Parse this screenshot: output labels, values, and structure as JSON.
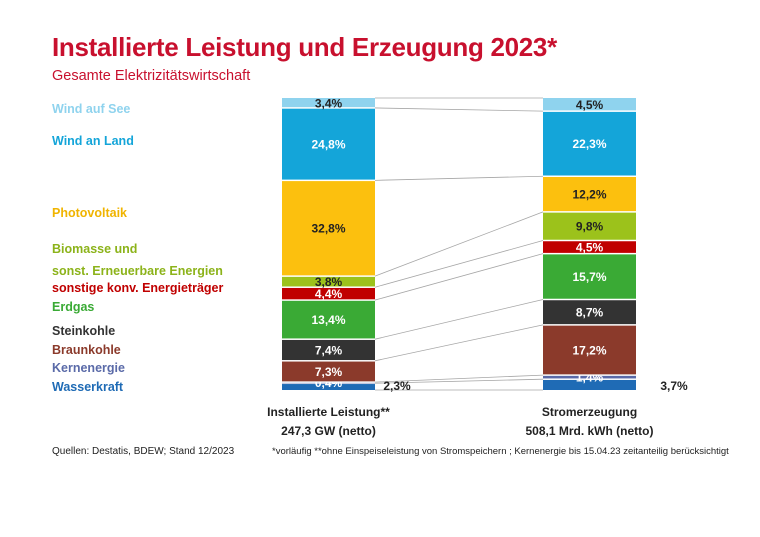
{
  "title": "Installierte Leistung und Erzeugung 2023*",
  "subtitle": "Gesamte Elektrizitätswirtschaft",
  "sources": "Quellen: Destatis, BDEW; Stand 12/2023",
  "footnote": "*vorläufig **ohne Einspeiseleistung von Stromspeichern ; Kernenergie bis 15.04.23 zeitanteilig berücksichtigt",
  "chart_data": {
    "type": "bar",
    "stacked": true,
    "normalized": "percent",
    "categories": [
      {
        "name": "Installierte Leistung**",
        "total": "247,3 GW (netto)"
      },
      {
        "name": "Stromerzeugung",
        "total": "508,1 Mrd. kWh (netto)"
      }
    ],
    "series": [
      {
        "name": "Wasserkraft",
        "color": "#1f6bb5",
        "values": [
          2.3,
          3.7
        ],
        "labels": [
          "2,3%",
          "3,7%"
        ],
        "label_outside": true
      },
      {
        "name": "Kernenergie",
        "color": "#5a6aa8",
        "values": [
          0.4,
          1.4
        ],
        "labels": [
          "0,4%",
          "1,4%"
        ]
      },
      {
        "name": "Braunkohle",
        "color": "#8b3a2b",
        "values": [
          7.3,
          17.2
        ],
        "labels": [
          "7,3%",
          "17,2%"
        ]
      },
      {
        "name": "Steinkohle",
        "color": "#333333",
        "values": [
          7.4,
          8.7
        ],
        "labels": [
          "7,4%",
          "8,7%"
        ]
      },
      {
        "name": "Erdgas",
        "color": "#3aaa35",
        "values": [
          13.4,
          15.7
        ],
        "labels": [
          "13,4%",
          "15,7%"
        ]
      },
      {
        "name": "sonstige konv. Energieträger",
        "color": "#c00000",
        "values": [
          4.4,
          4.5
        ],
        "labels": [
          "4,4%",
          "4,5%"
        ]
      },
      {
        "name": "Biomasse und sonst. Erneuerbare Energien",
        "color": "#9cc21b",
        "values": [
          3.8,
          9.8
        ],
        "labels": [
          "3,8%",
          "9,8%"
        ]
      },
      {
        "name": "Photovoltaik",
        "color": "#fcc00e",
        "values": [
          32.8,
          12.2
        ],
        "labels": [
          "32,8%",
          "12,2%"
        ]
      },
      {
        "name": "Wind an Land",
        "color": "#14a5d9",
        "values": [
          24.8,
          22.3
        ],
        "labels": [
          "24,8%",
          "22,3%"
        ]
      },
      {
        "name": "Wind auf See",
        "color": "#8fd3ee",
        "values": [
          3.4,
          4.5
        ],
        "labels": [
          "3,4%",
          "4,5%"
        ]
      }
    ],
    "legend": [
      {
        "lines": [
          "Wind auf See"
        ],
        "color": "#8fd3ee"
      },
      {
        "lines": [
          "Wind an Land"
        ],
        "color": "#14a5d9"
      },
      {
        "lines": [
          "Photovoltaik"
        ],
        "color": "#f0b400"
      },
      {
        "lines": [
          "Biomasse und",
          "sonst. Erneuerbare Energien"
        ],
        "color": "#8cb31a"
      },
      {
        "lines": [
          "sonstige konv. Energieträger"
        ],
        "color": "#c00000"
      },
      {
        "lines": [
          "Erdgas"
        ],
        "color": "#3aaa35"
      },
      {
        "lines": [
          "Steinkohle"
        ],
        "color": "#333333"
      },
      {
        "lines": [
          "Braunkohle"
        ],
        "color": "#8b3a2b"
      },
      {
        "lines": [
          "Kernenergie"
        ],
        "color": "#5a6aa8"
      },
      {
        "lines": [
          "Wasserkraft"
        ],
        "color": "#1f6bb5"
      }
    ],
    "legend_position": "left"
  }
}
